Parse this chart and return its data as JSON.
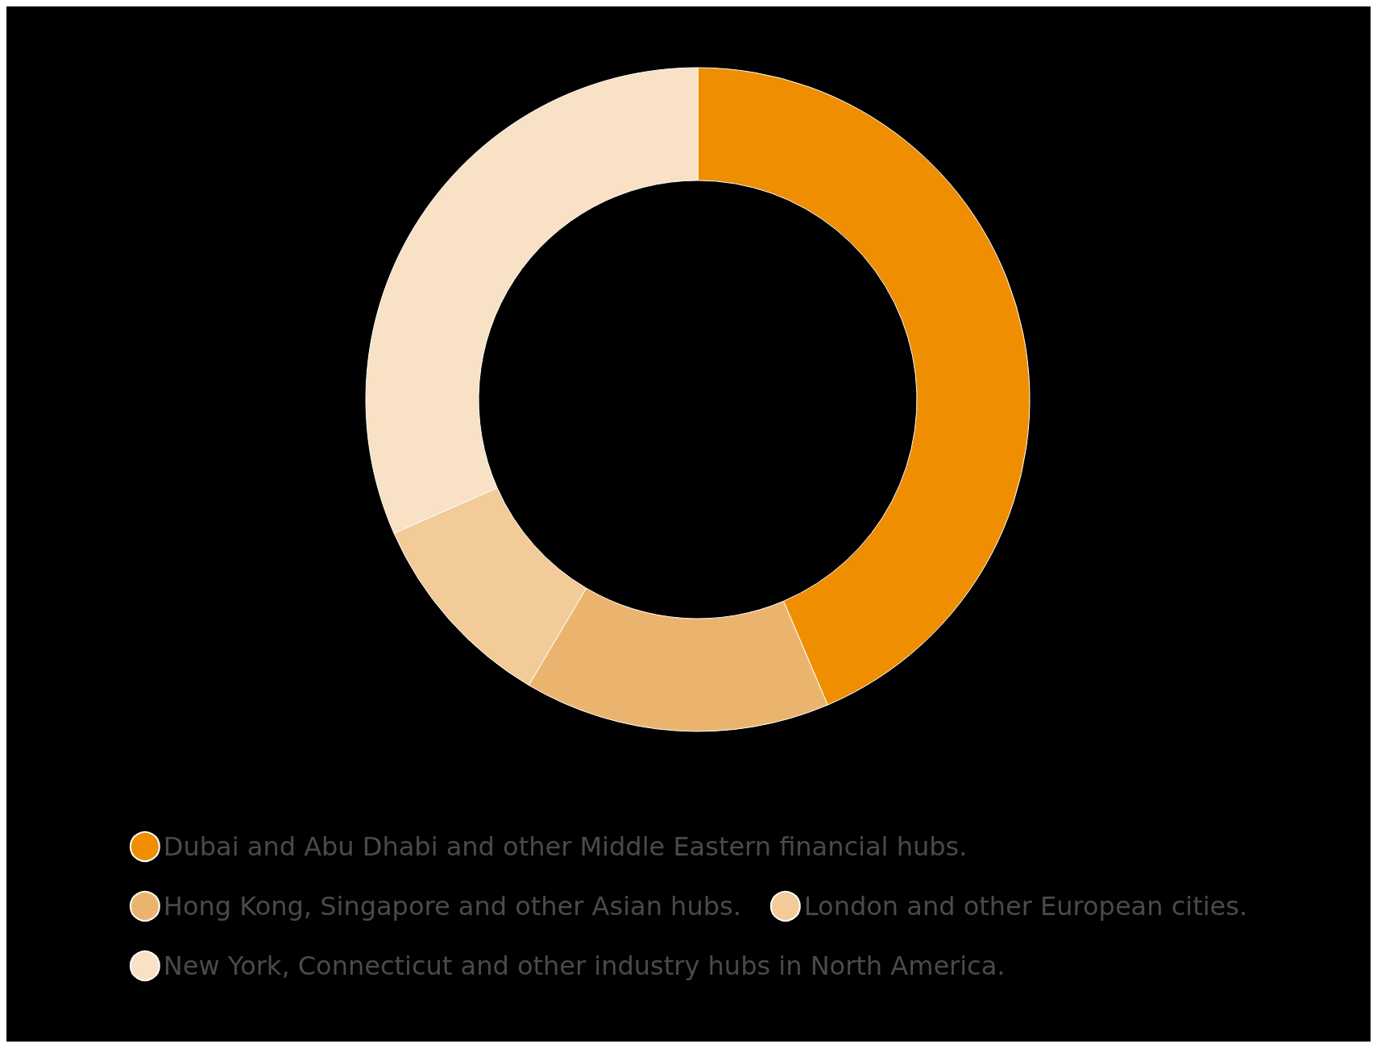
{
  "chart_data": {
    "type": "donut",
    "categories": [
      "Dubai and Abu Dhabi and other Middle Eastern financial hubs.",
      "Hong Kong, Singapore and other Asian hubs.",
      "London and other European cities.",
      "New York, Connecticut and other industry hubs in North America."
    ],
    "values": [
      43.6,
      14.9,
      9.9,
      31.6
    ],
    "colors": [
      "#ee8e00",
      "#ebb46e",
      "#f2cb98",
      "#f8e1c4"
    ],
    "legend": "bottom"
  }
}
